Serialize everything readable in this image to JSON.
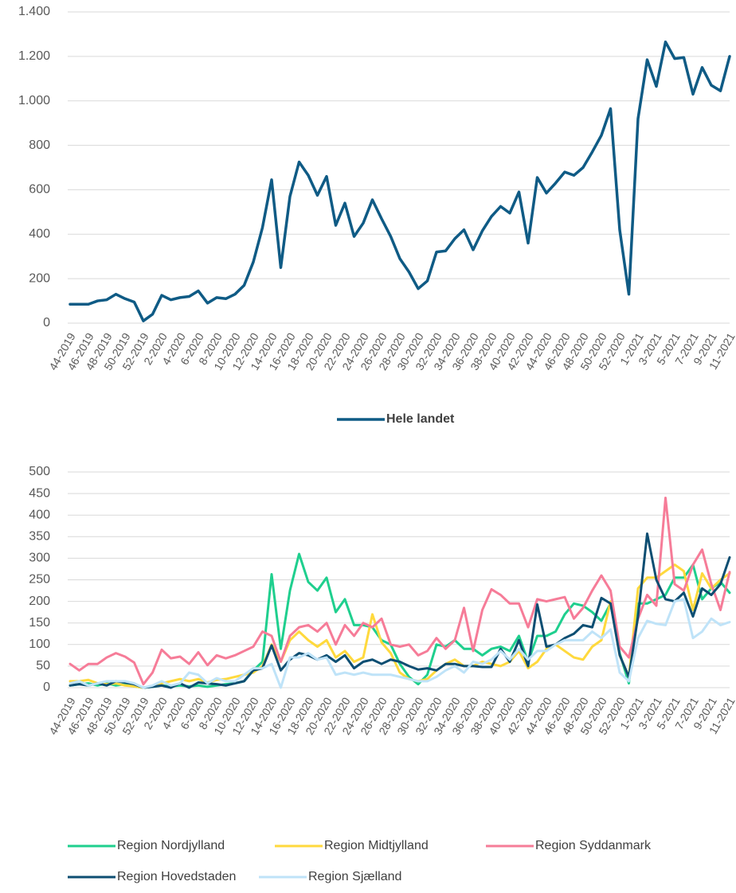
{
  "chart_data": [
    {
      "type": "line",
      "grid": true,
      "legend": "bottom",
      "categories": [
        "44-2019",
        null,
        "46-2019",
        null,
        "48-2019",
        null,
        "50-2019",
        null,
        "52-2019",
        null,
        "2-2020",
        null,
        "4-2020",
        null,
        "6-2020",
        null,
        "8-2020",
        null,
        "10-2020",
        null,
        "12-2020",
        null,
        "14-2020",
        null,
        "16-2020",
        null,
        "18-2020",
        null,
        "20-2020",
        null,
        "22-2020",
        null,
        "24-2020",
        null,
        "26-2020",
        null,
        "28-2020",
        null,
        "30-2020",
        null,
        "32-2020",
        null,
        "34-2020",
        null,
        "36-2020",
        null,
        "38-2020",
        null,
        "40-2020",
        null,
        "42-2020",
        null,
        "44-2020",
        null,
        "46-2020",
        null,
        "48-2020",
        null,
        "50-2020",
        null,
        "52-2020",
        null,
        "1-2021",
        null,
        "3-2021",
        null,
        "5-2021",
        null,
        "7-2021",
        null,
        "9-2021",
        null,
        "11-2021"
      ],
      "ylim": [
        0,
        1400
      ],
      "yticks": [
        0,
        200,
        400,
        600,
        800,
        {
          "value": 1000,
          "label": "1.000"
        },
        {
          "value": 1200,
          "label": "1.200"
        },
        {
          "value": 1400,
          "label": "1.400"
        }
      ],
      "series": [
        {
          "name": "Hele landet",
          "color": "#0f5b85",
          "values": [
            85,
            85,
            85,
            100,
            105,
            130,
            110,
            95,
            10,
            40,
            125,
            105,
            115,
            120,
            145,
            90,
            115,
            110,
            130,
            170,
            275,
            430,
            645,
            250,
            570,
            725,
            665,
            575,
            660,
            440,
            540,
            390,
            450,
            555,
            470,
            390,
            290,
            230,
            155,
            190,
            320,
            325,
            380,
            420,
            330,
            415,
            480,
            525,
            495,
            590,
            360,
            655,
            585,
            630,
            680,
            665,
            700,
            770,
            845,
            965,
            420,
            130,
            920,
            1185,
            1065,
            1265,
            1190,
            1195,
            1030,
            1150,
            1070,
            1045,
            1200
          ]
        }
      ]
    },
    {
      "type": "line",
      "grid": true,
      "legend": "bottom",
      "categories": [
        "44-2019",
        null,
        "46-2019",
        null,
        "48-2019",
        null,
        "50-2019",
        null,
        "52-2019",
        null,
        "2-2020",
        null,
        "4-2020",
        null,
        "6-2020",
        null,
        "8-2020",
        null,
        "10-2020",
        null,
        "12-2020",
        null,
        "14-2020",
        null,
        "16-2020",
        null,
        "18-2020",
        null,
        "20-2020",
        null,
        "22-2020",
        null,
        "24-2020",
        null,
        "26-2020",
        null,
        "28-2020",
        null,
        "30-2020",
        null,
        "32-2020",
        null,
        "34-2020",
        null,
        "36-2020",
        null,
        "38-2020",
        null,
        "40-2020",
        null,
        "42-2020",
        null,
        "44-2020",
        null,
        "46-2020",
        null,
        "48-2020",
        null,
        "50-2020",
        null,
        "52-2020",
        null,
        "1-2021",
        null,
        "3-2021",
        null,
        "5-2021",
        null,
        "7-2021",
        null,
        "9-2021",
        null,
        "11-2021"
      ],
      "ylim": [
        0,
        500
      ],
      "yticks": [
        0,
        50,
        100,
        150,
        200,
        250,
        300,
        350,
        400,
        450,
        500
      ],
      "series": [
        {
          "name": "Region Nordjylland",
          "color": "#1fcf8e",
          "values": [
            5,
            8,
            10,
            5,
            10,
            5,
            8,
            3,
            0,
            2,
            5,
            3,
            5,
            3,
            5,
            2,
            5,
            8,
            10,
            15,
            40,
            60,
            263,
            90,
            225,
            310,
            245,
            225,
            255,
            175,
            205,
            145,
            145,
            140,
            110,
            100,
            55,
            25,
            8,
            30,
            100,
            95,
            110,
            90,
            90,
            75,
            90,
            95,
            85,
            120,
            60,
            120,
            120,
            130,
            170,
            195,
            190,
            175,
            155,
            195,
            80,
            10,
            195,
            195,
            205,
            215,
            255,
            255,
            285,
            205,
            230,
            245,
            220
          ]
        },
        {
          "name": "Region Midtjylland",
          "color": "#ffd93d",
          "values": [
            15,
            15,
            18,
            10,
            8,
            10,
            5,
            3,
            0,
            3,
            10,
            15,
            20,
            15,
            20,
            12,
            18,
            20,
            25,
            30,
            35,
            50,
            100,
            60,
            110,
            130,
            110,
            95,
            110,
            70,
            85,
            60,
            70,
            170,
            105,
            80,
            35,
            20,
            15,
            20,
            40,
            55,
            65,
            50,
            50,
            60,
            55,
            50,
            60,
            85,
            45,
            60,
            90,
            100,
            85,
            70,
            65,
            95,
            110,
            200,
            75,
            25,
            230,
            255,
            255,
            270,
            285,
            270,
            180,
            265,
            230,
            250,
            265
          ]
        },
        {
          "name": "Region Syddanmark",
          "color": "#f67c98",
          "values": [
            55,
            40,
            55,
            55,
            70,
            80,
            72,
            58,
            8,
            35,
            88,
            68,
            72,
            55,
            82,
            52,
            75,
            68,
            75,
            85,
            95,
            130,
            120,
            60,
            120,
            140,
            145,
            130,
            150,
            100,
            145,
            120,
            150,
            140,
            160,
            100,
            95,
            100,
            75,
            85,
            115,
            90,
            110,
            185,
            85,
            180,
            228,
            215,
            195,
            195,
            140,
            205,
            200,
            205,
            210,
            160,
            185,
            225,
            260,
            225,
            95,
            70,
            160,
            215,
            190,
            440,
            240,
            225,
            285,
            320,
            240,
            180,
            268
          ]
        },
        {
          "name": "Region Hovedstaden",
          "color": "#0d4e72",
          "values": [
            5,
            8,
            5,
            10,
            5,
            15,
            12,
            8,
            0,
            2,
            5,
            0,
            10,
            0,
            12,
            10,
            8,
            5,
            10,
            15,
            40,
            45,
            98,
            40,
            65,
            80,
            75,
            65,
            75,
            60,
            75,
            45,
            60,
            65,
            55,
            65,
            60,
            50,
            42,
            45,
            40,
            55,
            55,
            50,
            50,
            48,
            48,
            90,
            60,
            110,
            50,
            193,
            95,
            100,
            115,
            125,
            145,
            140,
            208,
            195,
            75,
            25,
            165,
            357,
            250,
            205,
            200,
            220,
            165,
            230,
            215,
            240,
            302
          ]
        },
        {
          "name": "Region Sjælland",
          "color": "#bfe3f8",
          "values": [
            10,
            15,
            5,
            10,
            15,
            15,
            15,
            10,
            0,
            5,
            15,
            5,
            10,
            35,
            30,
            10,
            22,
            15,
            15,
            30,
            45,
            45,
            55,
            0,
            70,
            70,
            80,
            65,
            70,
            30,
            35,
            30,
            35,
            30,
            30,
            30,
            25,
            20,
            15,
            15,
            25,
            40,
            50,
            35,
            60,
            55,
            65,
            85,
            65,
            90,
            65,
            85,
            85,
            100,
            110,
            110,
            110,
            130,
            115,
            135,
            35,
            15,
            115,
            155,
            148,
            145,
            200,
            205,
            115,
            130,
            160,
            145,
            152
          ]
        }
      ]
    }
  ]
}
